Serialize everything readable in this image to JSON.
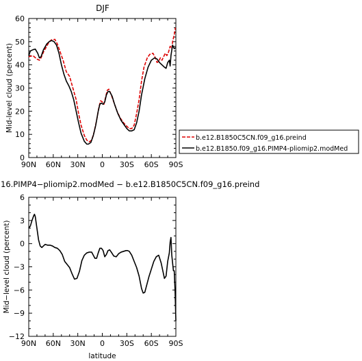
{
  "chart_data": [
    {
      "type": "line",
      "title": "DJF",
      "xlabel": "",
      "ylabel": "Mid-level cloud (percent)",
      "xlim": [
        90,
        -90
      ],
      "ylim": [
        0,
        60
      ],
      "xticks": [
        90,
        60,
        30,
        0,
        -30,
        -60,
        -90
      ],
      "xtick_labels": [
        "90N",
        "60N",
        "30N",
        "0",
        "30S",
        "60S",
        "90S"
      ],
      "yticks": [
        0,
        10,
        20,
        30,
        40,
        50,
        60
      ],
      "ytick_labels": [
        "0",
        "10",
        "20",
        "30",
        "40",
        "50",
        "60"
      ],
      "legend": "right",
      "series": [
        {
          "name": "b.e12.B1850C5CN.f09_g16.preind",
          "color": "#dd0000",
          "dash": "dashed",
          "points": [
            [
              90,
              43.5
            ],
            [
              85,
              44
            ],
            [
              80,
              42.5
            ],
            [
              77,
              42
            ],
            [
              75,
              43
            ],
            [
              72,
              45.5
            ],
            [
              68,
              48
            ],
            [
              65,
              50
            ],
            [
              62,
              50.8
            ],
            [
              58,
              51
            ],
            [
              55,
              49
            ],
            [
              52,
              46
            ],
            [
              48,
              42
            ],
            [
              44,
              37
            ],
            [
              40,
              35
            ],
            [
              36,
              30
            ],
            [
              32,
              25
            ],
            [
              29,
              19
            ],
            [
              26,
              14
            ],
            [
              22,
              9.5
            ],
            [
              19,
              7.5
            ],
            [
              16,
              6.8
            ],
            [
              13,
              7.5
            ],
            [
              10,
              11
            ],
            [
              7,
              16
            ],
            [
              4,
              22
            ],
            [
              2,
              24.5
            ],
            [
              0,
              24
            ],
            [
              -2,
              23
            ],
            [
              -4,
              26
            ],
            [
              -6,
              29
            ],
            [
              -8,
              29.5
            ],
            [
              -11,
              27
            ],
            [
              -14,
              24
            ],
            [
              -18,
              20
            ],
            [
              -22,
              17
            ],
            [
              -26,
              15
            ],
            [
              -30,
              13.5
            ],
            [
              -33,
              12.5
            ],
            [
              -36,
              12.5
            ],
            [
              -39,
              14
            ],
            [
              -42,
              19
            ],
            [
              -45,
              25
            ],
            [
              -48,
              33
            ],
            [
              -51,
              39
            ],
            [
              -55,
              43
            ],
            [
              -58,
              44.5
            ],
            [
              -62,
              45
            ],
            [
              -65,
              43
            ],
            [
              -67,
              41
            ],
            [
              -69,
              41.5
            ],
            [
              -71,
              43
            ],
            [
              -73,
              42
            ],
            [
              -75,
              43.5
            ],
            [
              -77,
              45
            ],
            [
              -79,
              44
            ],
            [
              -81,
              45.5
            ],
            [
              -83,
              48
            ],
            [
              -85,
              47
            ],
            [
              -86,
              50
            ],
            [
              -88,
              53
            ],
            [
              -89.5,
              56
            ]
          ]
        },
        {
          "name": "b.e12.B1850.f09_g16.PIMP4-pliomip2.modMed",
          "color": "#000000",
          "dash": "solid",
          "points": [
            [
              90,
              44
            ],
            [
              88,
              46
            ],
            [
              85,
              46.5
            ],
            [
              82,
              46.8
            ],
            [
              79,
              45
            ],
            [
              77,
              43
            ],
            [
              75,
              43.5
            ],
            [
              72,
              46.5
            ],
            [
              68,
              49
            ],
            [
              65,
              50
            ],
            [
              62,
              50.5
            ],
            [
              59,
              50
            ],
            [
              56,
              48.5
            ],
            [
              53,
              45
            ],
            [
              50,
              40
            ],
            [
              47,
              36
            ],
            [
              44,
              33
            ],
            [
              41,
              31
            ],
            [
              38,
              28.5
            ],
            [
              35,
              25
            ],
            [
              32,
              20
            ],
            [
              29,
              15
            ],
            [
              26,
              10.5
            ],
            [
              22,
              7
            ],
            [
              19,
              5.8
            ],
            [
              17,
              5.8
            ],
            [
              14,
              6.5
            ],
            [
              11,
              9.5
            ],
            [
              8,
              14
            ],
            [
              5,
              20
            ],
            [
              3,
              23
            ],
            [
              1,
              23.5
            ],
            [
              -1,
              23
            ],
            [
              -3,
              24
            ],
            [
              -5,
              27
            ],
            [
              -7,
              28.5
            ],
            [
              -9,
              28.5
            ],
            [
              -12,
              26.5
            ],
            [
              -15,
              23
            ],
            [
              -19,
              19
            ],
            [
              -23,
              16
            ],
            [
              -27,
              14
            ],
            [
              -30,
              12.5
            ],
            [
              -33,
              11.5
            ],
            [
              -36,
              11.5
            ],
            [
              -39,
              12
            ],
            [
              -42,
              15
            ],
            [
              -45,
              20
            ],
            [
              -48,
              27
            ],
            [
              -52,
              34
            ],
            [
              -56,
              39
            ],
            [
              -60,
              42
            ],
            [
              -64,
              43
            ],
            [
              -67,
              42.5
            ],
            [
              -70,
              41
            ],
            [
              -73,
              40
            ],
            [
              -76,
              39
            ],
            [
              -78,
              38.5
            ],
            [
              -80,
              41
            ],
            [
              -82,
              42
            ],
            [
              -83,
              39.5
            ],
            [
              -84,
              44
            ],
            [
              -86,
              48.5
            ],
            [
              -88,
              47
            ],
            [
              -90,
              47.5
            ]
          ]
        }
      ]
    },
    {
      "type": "line",
      "title": "16.PIMP4−pliomip2.modMed − b.e12.B1850C5CN.f09_g16.preind",
      "xlabel": "latitude",
      "ylabel": "Mid−level cloud (percent)",
      "xlim": [
        90,
        -90
      ],
      "ylim": [
        -12,
        6
      ],
      "xticks": [
        90,
        60,
        30,
        0,
        -30,
        -60,
        -90
      ],
      "xtick_labels": [
        "90N",
        "60N",
        "30N",
        "0",
        "30S",
        "60S",
        "90S"
      ],
      "yticks": [
        6,
        3,
        0,
        -3,
        -6,
        -9,
        -12
      ],
      "ytick_labels": [
        "6",
        "3",
        "0",
        "−3",
        "−6",
        "−9",
        "−12"
      ],
      "series": [
        {
          "color": "#000000",
          "points": [
            [
              90,
              2
            ],
            [
              88,
              2.3
            ],
            [
              86,
              3
            ],
            [
              84,
              3.6
            ],
            [
              83,
              3.8
            ],
            [
              82,
              3.5
            ],
            [
              80,
              2
            ],
            [
              78,
              0.5
            ],
            [
              76,
              -0.3
            ],
            [
              74,
              -0.5
            ],
            [
              72,
              -0.3
            ],
            [
              70,
              -0.1
            ],
            [
              67,
              -0.2
            ],
            [
              64,
              -0.2
            ],
            [
              61,
              -0.3
            ],
            [
              58,
              -0.5
            ],
            [
              55,
              -0.6
            ],
            [
              52,
              -0.9
            ],
            [
              49,
              -1.4
            ],
            [
              46,
              -2.3
            ],
            [
              43,
              -2.7
            ],
            [
              40,
              -3.1
            ],
            [
              37,
              -3.9
            ],
            [
              34,
              -4.6
            ],
            [
              31,
              -4.5
            ],
            [
              28,
              -3.6
            ],
            [
              25,
              -2.2
            ],
            [
              22,
              -1.5
            ],
            [
              19,
              -1.2
            ],
            [
              16,
              -1.1
            ],
            [
              13,
              -1.1
            ],
            [
              11,
              -1.5
            ],
            [
              9,
              -1.9
            ],
            [
              7,
              -1.9
            ],
            [
              5,
              -1.2
            ],
            [
              3,
              -0.6
            ],
            [
              1,
              -0.6
            ],
            [
              -1,
              -0.9
            ],
            [
              -3,
              -1.7
            ],
            [
              -5,
              -1.4
            ],
            [
              -7,
              -0.9
            ],
            [
              -9,
              -0.8
            ],
            [
              -11,
              -1.1
            ],
            [
              -14,
              -1.6
            ],
            [
              -17,
              -1.7
            ],
            [
              -20,
              -1.3
            ],
            [
              -23,
              -1.1
            ],
            [
              -26,
              -1.0
            ],
            [
              -29,
              -0.9
            ],
            [
              -31,
              -0.9
            ],
            [
              -33,
              -1.0
            ],
            [
              -36,
              -1.5
            ],
            [
              -39,
              -2.3
            ],
            [
              -42,
              -3.1
            ],
            [
              -45,
              -4.2
            ],
            [
              -48,
              -5.8
            ],
            [
              -50,
              -6.4
            ],
            [
              -52,
              -6.3
            ],
            [
              -54,
              -5.5
            ],
            [
              -57,
              -4.3
            ],
            [
              -60,
              -3.3
            ],
            [
              -63,
              -2.3
            ],
            [
              -66,
              -1.7
            ],
            [
              -69,
              -1.5
            ],
            [
              -72,
              -2.5
            ],
            [
              -74,
              -3.5
            ],
            [
              -76,
              -4.5
            ],
            [
              -78,
              -4.2
            ],
            [
              -80,
              -2.3
            ],
            [
              -82,
              -1.2
            ],
            [
              -83,
              0.2
            ],
            [
              -84,
              0.8
            ],
            [
              -85,
              -1.5
            ],
            [
              -86,
              -2.5
            ],
            [
              -87,
              -3.5
            ],
            [
              -88,
              -3.5
            ],
            [
              -89,
              -6
            ],
            [
              -90,
              -10
            ]
          ]
        }
      ]
    }
  ]
}
